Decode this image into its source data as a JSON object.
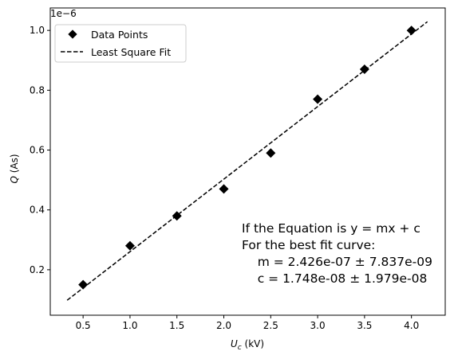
{
  "chart_data": {
    "type": "scatter",
    "xlabel_main": "U",
    "xlabel_sub": "c",
    "xlabel_unit": " (kV)",
    "ylabel_main": "Q",
    "ylabel_unit": " (As)",
    "y_multiplier_label": "1e−6",
    "xlim": [
      0.15,
      4.36
    ],
    "ylim": [
      0.048,
      1.075
    ],
    "xticks": [
      0.5,
      1.0,
      1.5,
      2.0,
      2.5,
      3.0,
      3.5,
      4.0
    ],
    "xtick_labels": [
      "0.5",
      "1.0",
      "1.5",
      "2.0",
      "2.5",
      "3.0",
      "3.5",
      "4.0"
    ],
    "yticks": [
      0.2,
      0.4,
      0.6,
      0.8,
      1.0
    ],
    "ytick_labels": [
      "0.2",
      "0.4",
      "0.6",
      "0.8",
      "1.0"
    ],
    "series": [
      {
        "name": "Data Points",
        "style": "markers",
        "marker": "diamond",
        "color": "#000000",
        "x": [
          0.5,
          1.0,
          1.5,
          2.0,
          2.5,
          3.0,
          3.5,
          4.0
        ],
        "y": [
          0.15,
          0.28,
          0.38,
          0.47,
          0.59,
          0.77,
          0.87,
          1.0
        ]
      },
      {
        "name": "Least Square Fit",
        "style": "dashed-line",
        "color": "#000000",
        "x": [
          0.33,
          4.17
        ],
        "y": [
          0.098,
          1.029
        ]
      }
    ],
    "legend_position": "top-left",
    "annotation": {
      "lines": [
        "If the Equation is y = mx + c",
        "For the best fit curve:",
        "    m = 2.426e-07 ± 7.837e-09",
        "    c = 1.748e-08 ± 1.979e-08"
      ]
    },
    "grid": false
  }
}
